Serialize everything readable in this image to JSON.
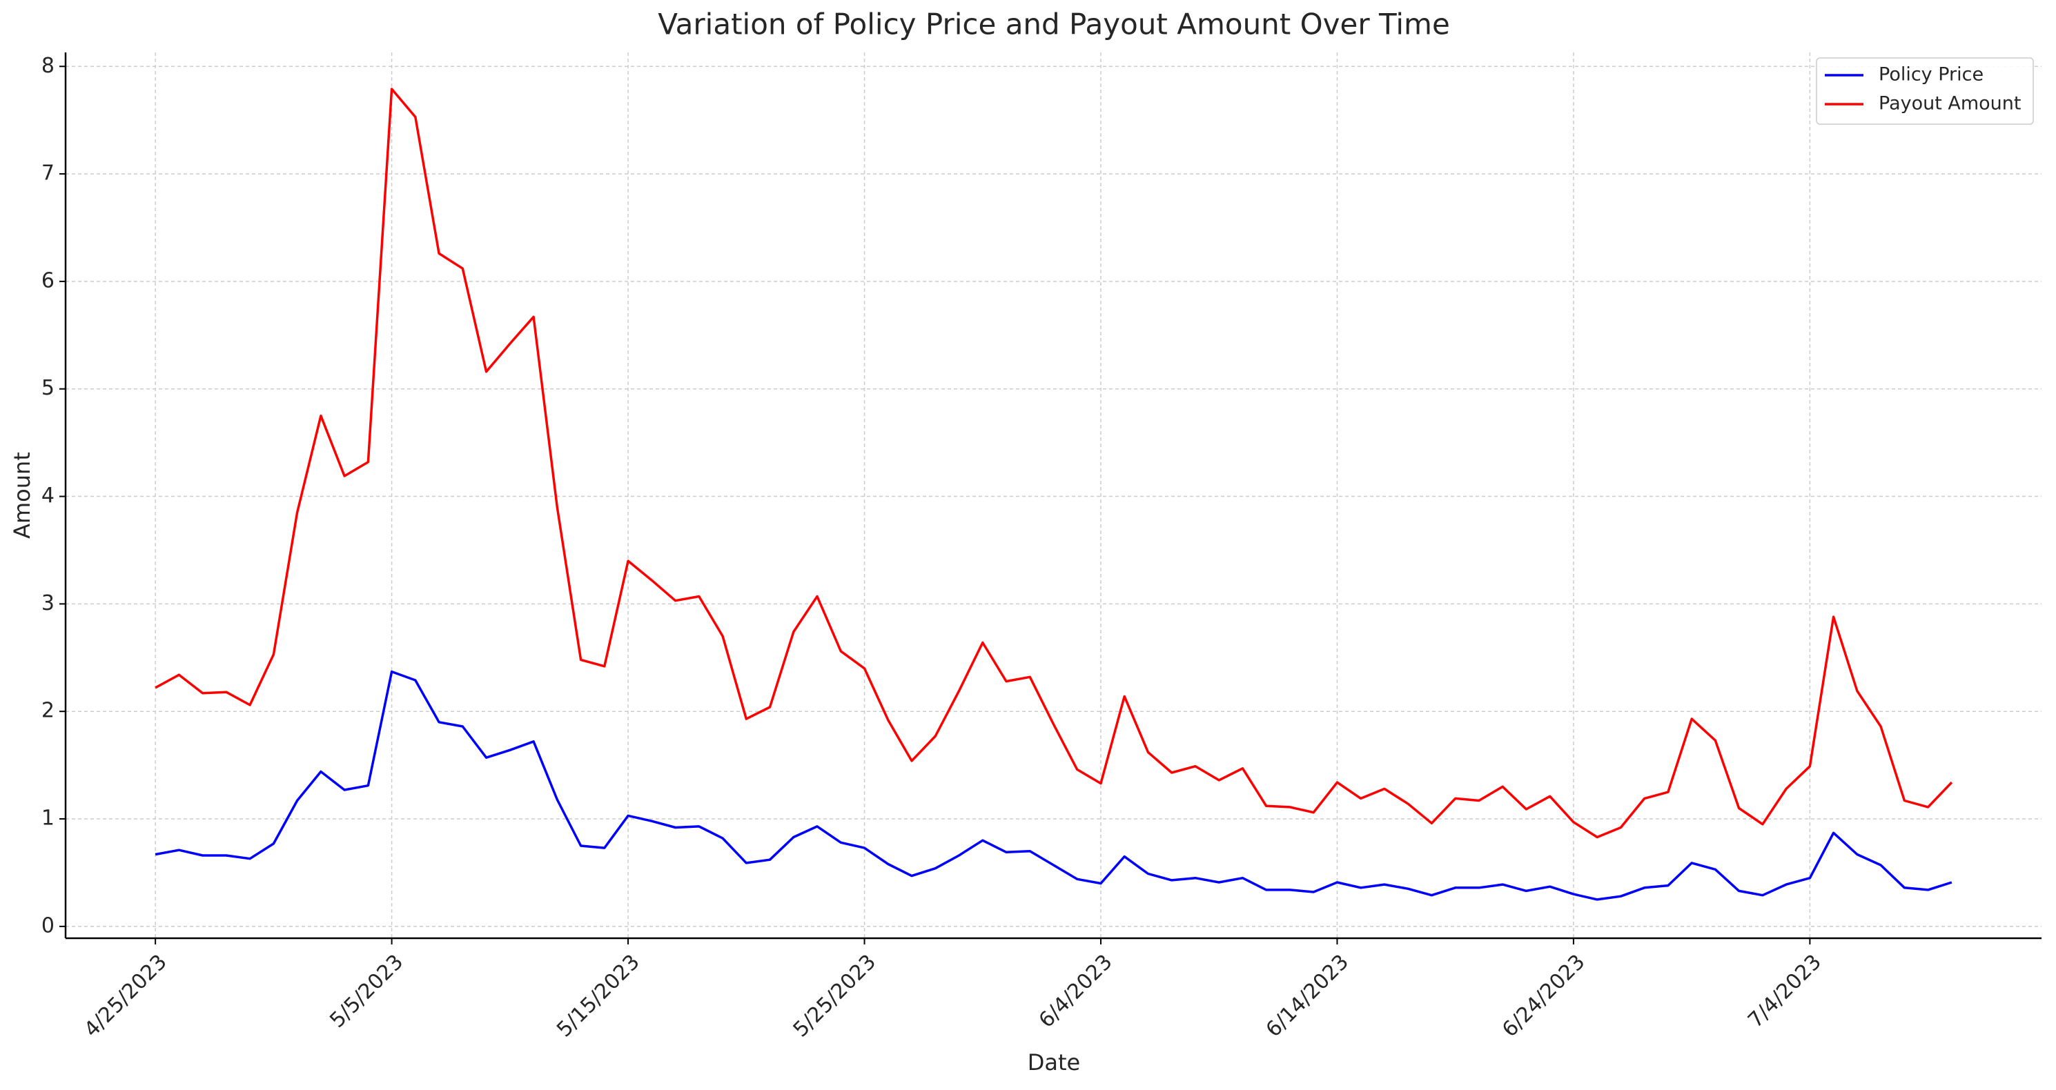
{
  "chart_data": {
    "type": "line",
    "title": "Variation of Policy Price and Payout Amount Over Time",
    "xlabel": "Date",
    "ylabel": "Amount",
    "x": [
      "4/25/2023",
      "4/26/2023",
      "4/27/2023",
      "4/28/2023",
      "4/29/2023",
      "4/30/2023",
      "5/1/2023",
      "5/2/2023",
      "5/3/2023",
      "5/4/2023",
      "5/5/2023",
      "5/6/2023",
      "5/7/2023",
      "5/8/2023",
      "5/9/2023",
      "5/10/2023",
      "5/11/2023",
      "5/12/2023",
      "5/13/2023",
      "5/14/2023",
      "5/15/2023",
      "5/16/2023",
      "5/17/2023",
      "5/18/2023",
      "5/19/2023",
      "5/20/2023",
      "5/21/2023",
      "5/22/2023",
      "5/23/2023",
      "5/24/2023",
      "5/25/2023",
      "5/26/2023",
      "5/27/2023",
      "5/28/2023",
      "5/29/2023",
      "5/30/2023",
      "5/31/2023",
      "6/1/2023",
      "6/2/2023",
      "6/3/2023",
      "6/4/2023",
      "6/5/2023",
      "6/6/2023",
      "6/7/2023",
      "6/8/2023",
      "6/9/2023",
      "6/10/2023",
      "6/11/2023",
      "6/12/2023",
      "6/13/2023",
      "6/14/2023",
      "6/15/2023",
      "6/16/2023",
      "6/17/2023",
      "6/18/2023",
      "6/19/2023",
      "6/20/2023",
      "6/21/2023",
      "6/22/2023",
      "6/23/2023",
      "6/24/2023",
      "6/25/2023",
      "6/26/2023",
      "6/27/2023",
      "6/28/2023",
      "6/29/2023",
      "6/30/2023",
      "7/1/2023",
      "7/2/2023",
      "7/3/2023",
      "7/4/2023",
      "7/5/2023",
      "7/6/2023",
      "7/7/2023",
      "7/8/2023",
      "7/9/2023",
      "7/10/2023"
    ],
    "series": [
      {
        "name": "Policy Price",
        "color": "#0000ff",
        "values": [
          0.67,
          0.71,
          0.66,
          0.66,
          0.63,
          0.77,
          1.17,
          1.44,
          1.27,
          1.31,
          2.37,
          2.29,
          1.9,
          1.86,
          1.57,
          1.64,
          1.72,
          1.18,
          0.75,
          0.73,
          1.03,
          0.98,
          0.92,
          0.93,
          0.82,
          0.59,
          0.62,
          0.83,
          0.93,
          0.78,
          0.73,
          0.58,
          0.47,
          0.54,
          0.66,
          0.8,
          0.69,
          0.7,
          0.57,
          0.44,
          0.4,
          0.65,
          0.49,
          0.43,
          0.45,
          0.41,
          0.45,
          0.34,
          0.34,
          0.32,
          0.41,
          0.36,
          0.39,
          0.35,
          0.29,
          0.36,
          0.36,
          0.39,
          0.33,
          0.37,
          0.3,
          0.25,
          0.28,
          0.36,
          0.38,
          0.59,
          0.53,
          0.33,
          0.29,
          0.39,
          0.45,
          0.87,
          0.67,
          0.57,
          0.36,
          0.34,
          0.41
        ]
      },
      {
        "name": "Payout Amount",
        "color": "#ff0000",
        "values": [
          2.22,
          2.34,
          2.17,
          2.18,
          2.06,
          2.53,
          3.85,
          4.75,
          4.19,
          4.32,
          7.79,
          7.53,
          6.26,
          6.12,
          5.16,
          5.42,
          5.67,
          3.9,
          2.48,
          2.42,
          3.4,
          3.22,
          3.03,
          3.07,
          2.7,
          1.93,
          2.04,
          2.74,
          3.07,
          2.56,
          2.4,
          1.92,
          1.54,
          1.77,
          2.19,
          2.64,
          2.28,
          2.32,
          1.88,
          1.46,
          1.33,
          2.14,
          1.62,
          1.43,
          1.49,
          1.36,
          1.47,
          1.12,
          1.11,
          1.06,
          1.34,
          1.19,
          1.28,
          1.14,
          0.96,
          1.19,
          1.17,
          1.3,
          1.09,
          1.21,
          0.97,
          0.83,
          0.92,
          1.19,
          1.25,
          1.93,
          1.73,
          1.1,
          0.95,
          1.28,
          1.49,
          2.88,
          2.19,
          1.86,
          1.17,
          1.11,
          1.34
        ]
      }
    ],
    "xticks": [
      "4/25/2023",
      "5/5/2023",
      "5/15/2023",
      "5/25/2023",
      "6/4/2023",
      "6/14/2023",
      "6/24/2023",
      "7/4/2023"
    ],
    "ylim": [
      -0.11,
      8.13
    ],
    "yticks": [
      0,
      1,
      2,
      3,
      4,
      5,
      6,
      7,
      8
    ],
    "grid": true,
    "legend": "upper right"
  }
}
